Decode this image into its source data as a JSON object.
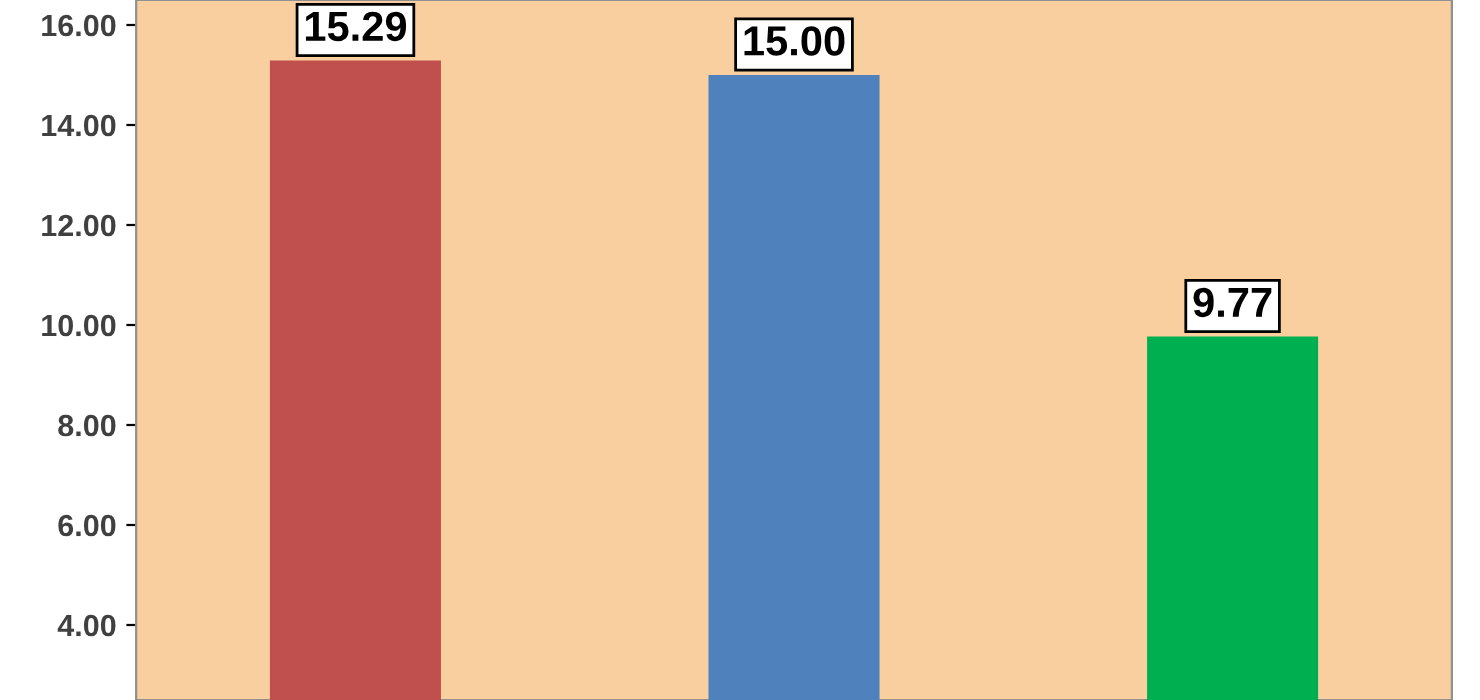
{
  "chart_data": {
    "type": "bar",
    "categories": [
      null,
      null,
      null
    ],
    "values": [
      15.29,
      15.0,
      9.77
    ],
    "colors": [
      "#c0504d",
      "#4f81bd",
      "#00b050"
    ],
    "value_labels": [
      "15.29",
      "15.00",
      "9.77"
    ],
    "ylim": [
      2.5,
      16.5
    ],
    "yticks": [
      {
        "value": 4,
        "label": "4.00"
      },
      {
        "value": 6,
        "label": "6.00"
      },
      {
        "value": 8,
        "label": "8.00"
      },
      {
        "value": 10,
        "label": "10.00"
      },
      {
        "value": 12,
        "label": "12.00"
      },
      {
        "value": 14,
        "label": "14.00"
      },
      {
        "value": 16,
        "label": "16.00"
      }
    ],
    "tick_labels": "y",
    "grid": false,
    "legend": false
  }
}
